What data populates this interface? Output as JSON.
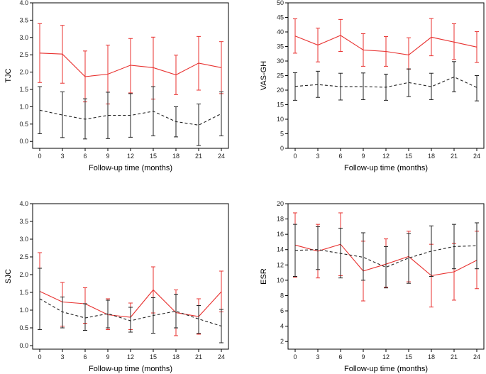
{
  "chart_data": [
    {
      "id": "tjc",
      "type": "line",
      "title": "",
      "xlabel": "Follow-up time (months)",
      "ylabel": "TJC",
      "x": [
        0,
        3,
        6,
        9,
        12,
        15,
        18,
        21,
        24
      ],
      "x_ticks": [
        "0",
        "3",
        "6",
        "9",
        "12",
        "15",
        "18",
        "21",
        "24"
      ],
      "ylim": [
        -0.2,
        4.0
      ],
      "y_ticks": [
        "0.0",
        "0.5",
        "1.0",
        "1.5",
        "2.0",
        "2.5",
        "3.0",
        "3.5",
        "4.0"
      ],
      "series": [
        {
          "name": "solid-red",
          "color": "#e8312f",
          "style": "solid",
          "values": [
            2.55,
            2.52,
            1.87,
            1.94,
            2.2,
            2.13,
            1.92,
            2.26,
            2.13
          ],
          "error_low": [
            1.7,
            1.68,
            1.14,
            1.08,
            1.4,
            1.22,
            1.35,
            1.48,
            1.38
          ],
          "error_high": [
            3.4,
            3.35,
            2.61,
            2.78,
            2.97,
            3.01,
            2.49,
            3.03,
            2.88
          ]
        },
        {
          "name": "dashed-black",
          "color": "#222222",
          "style": "dashed",
          "values": [
            0.9,
            0.76,
            0.64,
            0.75,
            0.75,
            0.87,
            0.57,
            0.47,
            0.8
          ],
          "error_low": [
            0.22,
            0.11,
            0.07,
            0.08,
            0.12,
            0.16,
            0.13,
            -0.12,
            0.16
          ],
          "error_high": [
            1.58,
            1.43,
            1.23,
            1.42,
            1.38,
            1.58,
            1.0,
            1.08,
            1.43
          ]
        }
      ]
    },
    {
      "id": "vas-gh",
      "type": "line",
      "title": "",
      "xlabel": "Follow-up time (months)",
      "ylabel": "VAS-GH",
      "x": [
        0,
        3,
        6,
        9,
        12,
        15,
        18,
        21,
        24
      ],
      "x_ticks": [
        "0",
        "3",
        "6",
        "9",
        "12",
        "15",
        "18",
        "21",
        "24"
      ],
      "ylim": [
        0,
        50
      ],
      "y_ticks": [
        "0",
        "5",
        "10",
        "15",
        "20",
        "25",
        "30",
        "35",
        "40",
        "45",
        "50"
      ],
      "series": [
        {
          "name": "solid-red",
          "color": "#e8312f",
          "style": "solid",
          "values": [
            38.6,
            35.5,
            38.8,
            33.8,
            33.3,
            32.1,
            38.2,
            36.5,
            34.8
          ],
          "error_low": [
            32.7,
            29.7,
            33.3,
            28.2,
            28.2,
            27.2,
            31.8,
            30.5,
            29.5
          ],
          "error_high": [
            44.5,
            41.3,
            44.3,
            39.4,
            38.4,
            38.0,
            44.6,
            42.8,
            40.1
          ]
        },
        {
          "name": "dashed-black",
          "color": "#222222",
          "style": "dashed",
          "values": [
            21.3,
            21.9,
            21.2,
            21.2,
            21.0,
            22.6,
            21.2,
            24.5,
            20.9
          ],
          "error_low": [
            16.5,
            17.5,
            16.6,
            16.7,
            16.5,
            17.8,
            16.7,
            19.4,
            16.3
          ],
          "error_high": [
            26.0,
            26.5,
            25.8,
            25.9,
            25.5,
            27.3,
            25.8,
            29.8,
            25.0
          ]
        }
      ]
    },
    {
      "id": "sjc",
      "type": "line",
      "title": "",
      "xlabel": "Follow-up time (months)",
      "ylabel": "SJC",
      "x": [
        0,
        3,
        6,
        9,
        12,
        15,
        18,
        21,
        24
      ],
      "x_ticks": [
        "0",
        "3",
        "6",
        "9",
        "12",
        "15",
        "18",
        "21",
        "24"
      ],
      "ylim": [
        -0.1,
        4.0
      ],
      "y_ticks": [
        "0.0",
        "0.5",
        "1.0",
        "1.5",
        "2.0",
        "2.5",
        "3.0",
        "3.5",
        "4.0"
      ],
      "series": [
        {
          "name": "solid-red",
          "color": "#e8312f",
          "style": "solid",
          "values": [
            1.53,
            1.23,
            1.18,
            0.87,
            0.8,
            1.57,
            0.93,
            0.82,
            1.52
          ],
          "error_low": [
            0.45,
            0.55,
            0.63,
            0.45,
            0.45,
            0.92,
            0.28,
            0.32,
            0.95
          ],
          "error_high": [
            2.62,
            1.78,
            1.63,
            1.32,
            1.2,
            2.22,
            1.57,
            1.32,
            2.1
          ]
        },
        {
          "name": "dashed-black",
          "color": "#222222",
          "style": "dashed",
          "values": [
            1.32,
            0.95,
            0.78,
            0.9,
            0.7,
            0.85,
            0.97,
            0.75,
            0.55
          ],
          "error_low": [
            0.45,
            0.5,
            0.43,
            0.5,
            0.38,
            0.35,
            0.5,
            0.35,
            0.08
          ],
          "error_high": [
            2.18,
            1.37,
            1.18,
            1.28,
            1.08,
            1.35,
            1.45,
            1.13,
            1.02
          ]
        }
      ]
    },
    {
      "id": "esr",
      "type": "line",
      "title": "",
      "xlabel": "Follow-up time (months)",
      "ylabel": "ESR",
      "x": [
        0,
        3,
        6,
        9,
        12,
        15,
        18,
        21,
        24
      ],
      "x_ticks": [
        "0",
        "3",
        "6",
        "9",
        "12",
        "15",
        "18",
        "21",
        "24"
      ],
      "ylim": [
        1,
        20
      ],
      "y_ticks": [
        "2",
        "4",
        "6",
        "8",
        "10",
        "12",
        "14",
        "16",
        "18",
        "20"
      ],
      "series": [
        {
          "name": "solid-red",
          "color": "#e8312f",
          "style": "solid",
          "values": [
            14.6,
            13.8,
            14.7,
            11.2,
            12.1,
            13.1,
            10.6,
            11.1,
            12.6
          ],
          "error_low": [
            10.4,
            10.3,
            10.6,
            7.3,
            9.1,
            9.8,
            6.5,
            7.4,
            8.9
          ],
          "error_high": [
            18.8,
            17.3,
            18.8,
            15.1,
            15.4,
            16.4,
            14.7,
            14.8,
            16.4
          ]
        },
        {
          "name": "dashed-black",
          "color": "#222222",
          "style": "dashed",
          "values": [
            13.9,
            14.0,
            13.5,
            13.0,
            11.7,
            12.9,
            13.8,
            14.4,
            14.5
          ],
          "error_low": [
            10.5,
            11.4,
            10.3,
            10.0,
            9.0,
            9.6,
            10.5,
            11.5,
            11.5
          ],
          "error_high": [
            17.3,
            17.0,
            16.8,
            16.2,
            14.4,
            16.1,
            17.1,
            17.3,
            17.5
          ]
        }
      ]
    }
  ]
}
